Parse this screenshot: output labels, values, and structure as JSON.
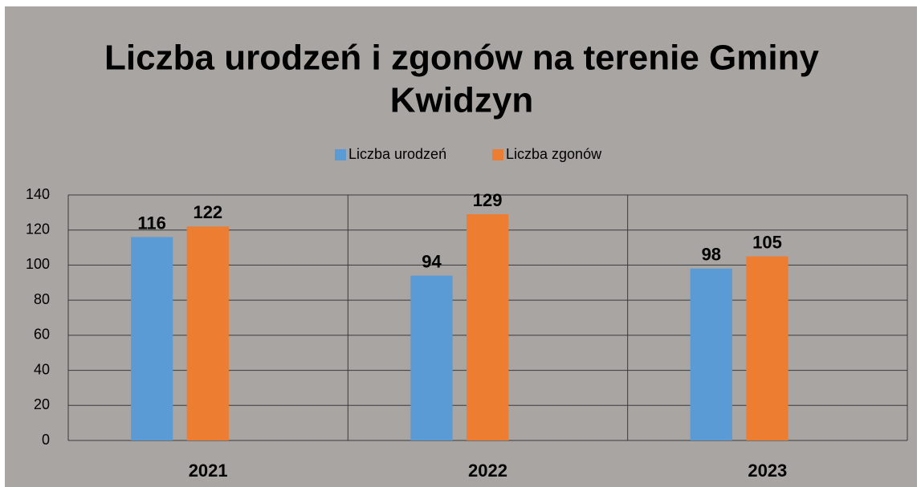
{
  "chart_data": {
    "type": "bar",
    "title": [
      "Liczba urodzeń i zgonów na terenie Gminy",
      "Kwidzyn"
    ],
    "categories": [
      "2021",
      "2022",
      "2023"
    ],
    "series": [
      {
        "name": "Liczba urodzeń",
        "color": "#5b9bd5",
        "values": [
          116,
          94,
          98
        ]
      },
      {
        "name": "Liczba zgonów",
        "color": "#ed7d31",
        "values": [
          122,
          129,
          105
        ]
      }
    ],
    "ylim": [
      0,
      140
    ],
    "yticks": [
      0,
      20,
      40,
      60,
      80,
      100,
      120,
      140
    ],
    "grid": true,
    "legend": "top"
  }
}
